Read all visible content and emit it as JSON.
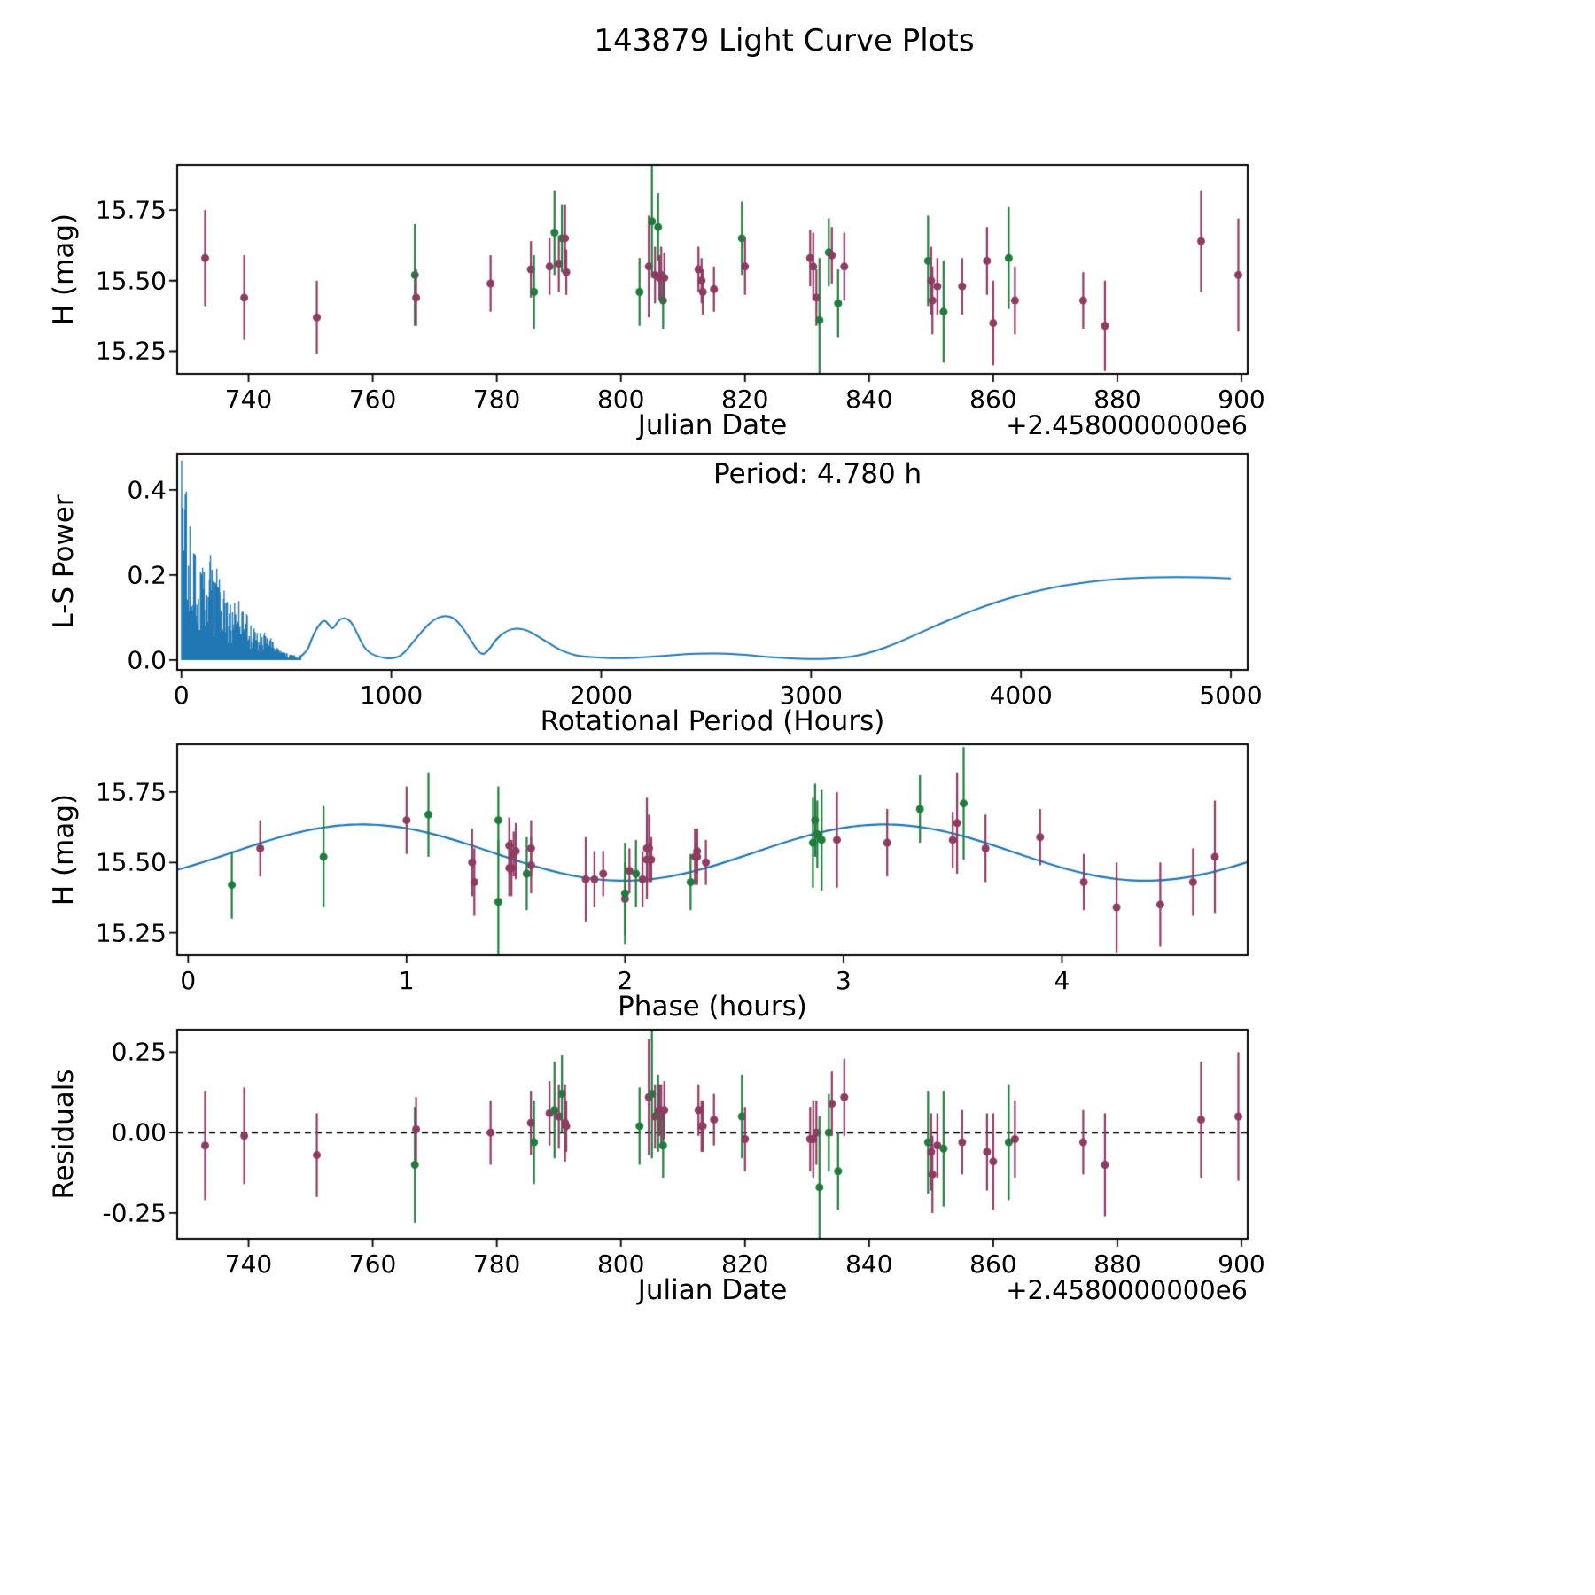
{
  "title": "143879 Light Curve Plots",
  "accent_colors": {
    "series_green": "#1f7d3c",
    "series_purple": "#8e3b63",
    "line_blue": "#1f77b4",
    "axes": "#000000"
  },
  "chart_data": {
    "type": "multi-panel",
    "figure_title": "143879 Light Curve Plots",
    "series_legend": {
      "g": "green observation points",
      "p": "purple observation points"
    },
    "observations_columns": [
      "julian_date_minus_2458000",
      "h_mag",
      "err_mag",
      "series",
      "phase_hours",
      "residual_mag"
    ],
    "observations": [
      [
        733.0,
        15.58,
        0.17,
        "p",
        2.97,
        -0.04
      ],
      [
        739.3,
        15.44,
        0.15,
        "p",
        1.82,
        -0.01
      ],
      [
        751.0,
        15.37,
        0.13,
        "p",
        2.0,
        -0.07
      ],
      [
        766.8,
        15.52,
        0.18,
        "g",
        0.62,
        -0.1
      ],
      [
        767.0,
        15.44,
        0.1,
        "p",
        2.08,
        0.01
      ],
      [
        779.0,
        15.49,
        0.1,
        "p",
        1.57,
        0.0
      ],
      [
        785.5,
        15.54,
        0.1,
        "p",
        1.5,
        0.03
      ],
      [
        786.0,
        15.46,
        0.13,
        "g",
        1.55,
        -0.03
      ],
      [
        788.5,
        15.55,
        0.1,
        "p",
        1.57,
        0.06
      ],
      [
        789.3,
        15.67,
        0.15,
        "g",
        1.1,
        0.07
      ],
      [
        790.0,
        15.56,
        0.1,
        "p",
        1.47,
        0.05
      ],
      [
        790.5,
        15.65,
        0.12,
        "g",
        1.42,
        0.12
      ],
      [
        791.0,
        15.65,
        0.12,
        "p",
        1.0,
        0.03
      ],
      [
        791.2,
        15.53,
        0.08,
        "p",
        1.49,
        0.02
      ],
      [
        803.0,
        15.46,
        0.12,
        "g",
        2.05,
        0.02
      ],
      [
        804.5,
        15.55,
        0.18,
        "p",
        2.1,
        0.11
      ],
      [
        805.0,
        15.71,
        0.2,
        "g",
        3.55,
        0.12
      ],
      [
        805.5,
        15.52,
        0.1,
        "p",
        2.32,
        0.05
      ],
      [
        806.0,
        15.69,
        0.12,
        "g",
        3.35,
        0.06
      ],
      [
        806.2,
        15.51,
        0.08,
        "p",
        2.12,
        0.07
      ],
      [
        806.5,
        15.52,
        0.1,
        "p",
        2.33,
        0.05
      ],
      [
        806.8,
        15.43,
        0.1,
        "g",
        2.3,
        -0.04
      ],
      [
        807.0,
        15.51,
        0.09,
        "p",
        2.1,
        0.07
      ],
      [
        812.5,
        15.54,
        0.08,
        "p",
        2.33,
        0.07
      ],
      [
        813.0,
        15.5,
        0.08,
        "p",
        2.37,
        0.02
      ],
      [
        813.2,
        15.46,
        0.08,
        "p",
        1.9,
        0.02
      ],
      [
        815.0,
        15.47,
        0.08,
        "p",
        2.02,
        0.04
      ],
      [
        819.5,
        15.65,
        0.13,
        "g",
        2.87,
        0.05
      ],
      [
        820.0,
        15.55,
        0.1,
        "p",
        0.33,
        -0.02
      ],
      [
        830.5,
        15.58,
        0.1,
        "p",
        3.5,
        -0.02
      ],
      [
        831.0,
        15.55,
        0.12,
        "p",
        3.65,
        -0.02
      ],
      [
        831.5,
        15.44,
        0.1,
        "p",
        1.86,
        0.0
      ],
      [
        832.0,
        15.36,
        0.22,
        "g",
        1.42,
        -0.17
      ],
      [
        833.5,
        15.6,
        0.12,
        "g",
        2.88,
        0.0
      ],
      [
        834.0,
        15.59,
        0.1,
        "p",
        3.9,
        0.09
      ],
      [
        835.0,
        15.42,
        0.12,
        "g",
        0.2,
        -0.12
      ],
      [
        836.0,
        15.55,
        0.12,
        "p",
        2.11,
        0.11
      ],
      [
        849.5,
        15.57,
        0.16,
        "g",
        2.86,
        -0.03
      ],
      [
        850.0,
        15.5,
        0.12,
        "p",
        1.3,
        -0.06
      ],
      [
        850.2,
        15.43,
        0.12,
        "p",
        1.31,
        -0.13
      ],
      [
        851.0,
        15.48,
        0.1,
        "p",
        1.47,
        -0.04
      ],
      [
        852.0,
        15.39,
        0.18,
        "g",
        2.0,
        -0.05
      ],
      [
        855.0,
        15.48,
        0.1,
        "p",
        1.48,
        -0.03
      ],
      [
        859.0,
        15.57,
        0.12,
        "p",
        3.2,
        -0.06
      ],
      [
        860.0,
        15.35,
        0.15,
        "p",
        4.45,
        -0.09
      ],
      [
        862.5,
        15.58,
        0.18,
        "g",
        2.9,
        -0.03
      ],
      [
        863.5,
        15.43,
        0.12,
        "p",
        4.6,
        -0.02
      ],
      [
        874.5,
        15.43,
        0.1,
        "p",
        4.1,
        -0.03
      ],
      [
        878.0,
        15.34,
        0.16,
        "p",
        4.25,
        -0.1
      ],
      [
        893.5,
        15.64,
        0.18,
        "p",
        3.52,
        0.04
      ],
      [
        899.5,
        15.52,
        0.2,
        "p",
        4.7,
        0.05
      ]
    ],
    "model_fit": {
      "description": "sinusoidal fit on phased light curve",
      "mean": 15.535,
      "amplitude": 0.1,
      "phase_zero": 0.2,
      "half_period": 2.39
    },
    "periodogram": {
      "best_period_hours": 4.78,
      "annotation": "Period: 4.780 h",
      "noise_region": {
        "x_end": 570,
        "seed": 20,
        "envelope": {
          "a1": 0.5,
          "tau1": 48,
          "a2": 0.1,
          "tau2": 260
        },
        "bumps": [
          [
            150,
            55,
            0.17
          ],
          [
            285,
            35,
            0.1
          ],
          [
            390,
            45,
            0.045
          ]
        ]
      },
      "smooth_points": [
        [
          560,
          0.005
        ],
        [
          600,
          0.02
        ],
        [
          620,
          0.05
        ],
        [
          650,
          0.08
        ],
        [
          680,
          0.095
        ],
        [
          700,
          0.085
        ],
        [
          720,
          0.07
        ],
        [
          750,
          0.095
        ],
        [
          780,
          0.1
        ],
        [
          810,
          0.09
        ],
        [
          840,
          0.06
        ],
        [
          870,
          0.03
        ],
        [
          900,
          0.015
        ],
        [
          950,
          0.006
        ],
        [
          1000,
          0.003
        ],
        [
          1050,
          0.01
        ],
        [
          1100,
          0.04
        ],
        [
          1150,
          0.07
        ],
        [
          1200,
          0.095
        ],
        [
          1250,
          0.105
        ],
        [
          1300,
          0.1
        ],
        [
          1350,
          0.07
        ],
        [
          1400,
          0.03
        ],
        [
          1430,
          0.012
        ],
        [
          1460,
          0.02
        ],
        [
          1500,
          0.05
        ],
        [
          1550,
          0.07
        ],
        [
          1600,
          0.075
        ],
        [
          1650,
          0.07
        ],
        [
          1700,
          0.055
        ],
        [
          1750,
          0.04
        ],
        [
          1800,
          0.025
        ],
        [
          1850,
          0.015
        ],
        [
          1900,
          0.009
        ],
        [
          2000,
          0.005
        ],
        [
          2100,
          0.004
        ],
        [
          2200,
          0.006
        ],
        [
          2300,
          0.01
        ],
        [
          2400,
          0.014
        ],
        [
          2500,
          0.016
        ],
        [
          2600,
          0.015
        ],
        [
          2700,
          0.012
        ],
        [
          2800,
          0.007
        ],
        [
          2900,
          0.004
        ],
        [
          3000,
          0.002
        ],
        [
          3100,
          0.003
        ],
        [
          3200,
          0.008
        ],
        [
          3300,
          0.02
        ],
        [
          3400,
          0.038
        ],
        [
          3500,
          0.06
        ],
        [
          3600,
          0.082
        ],
        [
          3700,
          0.103
        ],
        [
          3800,
          0.122
        ],
        [
          3900,
          0.139
        ],
        [
          4000,
          0.153
        ],
        [
          4100,
          0.165
        ],
        [
          4200,
          0.175
        ],
        [
          4300,
          0.182
        ],
        [
          4400,
          0.188
        ],
        [
          4500,
          0.192
        ],
        [
          4600,
          0.194
        ],
        [
          4700,
          0.195
        ],
        [
          4800,
          0.195
        ],
        [
          4900,
          0.194
        ],
        [
          5000,
          0.192
        ]
      ]
    },
    "panels": [
      {
        "id": "lightcurve",
        "type": "scatter",
        "xlabel": "Julian Date",
        "ylabel": "H (mag)",
        "x_offset": "+2.4580000000e6",
        "xlim": [
          728.5,
          901
        ],
        "ylim": [
          15.17,
          15.91
        ],
        "xticks": [
          "740",
          "760",
          "780",
          "800",
          "820",
          "840",
          "860",
          "880",
          "900"
        ],
        "yticks": [
          "15.25",
          "15.50",
          "15.75"
        ],
        "x_field": "julian_date_minus_2458000",
        "y_field": "h_mag"
      },
      {
        "id": "periodogram",
        "type": "line",
        "xlabel": "Rotational Period (Hours)",
        "ylabel": "L-S Power",
        "annotation": "Period: 4.780 h",
        "xlim": [
          -20,
          5080
        ],
        "ylim": [
          -0.023,
          0.485
        ],
        "xticks": [
          "0",
          "1000",
          "2000",
          "3000",
          "4000",
          "5000"
        ],
        "yticks": [
          "0.0",
          "0.2",
          "0.4"
        ]
      },
      {
        "id": "phase",
        "type": "scatter+line",
        "xlabel": "Phase (hours)",
        "ylabel": "H (mag)",
        "xlim": [
          -0.05,
          4.85
        ],
        "ylim": [
          15.17,
          15.92
        ],
        "xticks": [
          "0",
          "1",
          "2",
          "3",
          "4"
        ],
        "yticks": [
          "15.25",
          "15.50",
          "15.75"
        ],
        "x_field": "phase_hours",
        "y_field": "h_mag"
      },
      {
        "id": "residuals",
        "type": "scatter",
        "xlabel": "Julian Date",
        "ylabel": "Residuals",
        "x_offset": "+2.4580000000e6",
        "zero_line": true,
        "xlim": [
          728.5,
          901
        ],
        "ylim": [
          -0.33,
          0.32
        ],
        "xticks": [
          "740",
          "760",
          "780",
          "800",
          "820",
          "840",
          "860",
          "880",
          "900"
        ],
        "yticks": [
          "-0.25",
          "0.00",
          "0.25"
        ],
        "x_field": "julian_date_minus_2458000",
        "y_field": "residual_mag"
      }
    ]
  }
}
